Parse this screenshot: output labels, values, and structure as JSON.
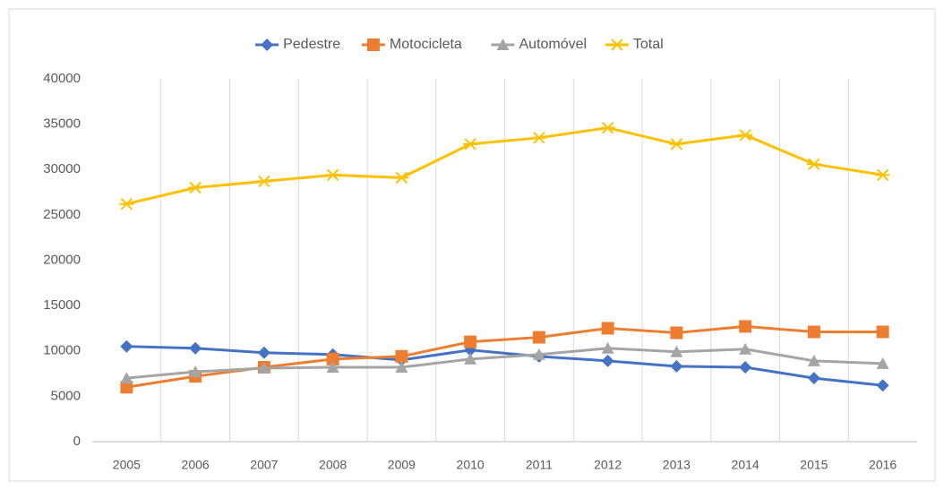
{
  "chart_data": {
    "type": "line",
    "categories": [
      "2005",
      "2006",
      "2007",
      "2008",
      "2009",
      "2010",
      "2011",
      "2012",
      "2013",
      "2014",
      "2015",
      "2016"
    ],
    "series": [
      {
        "name": "Pedestre",
        "color": "#4472c4",
        "marker": "diamond",
        "values": [
          10500,
          10300,
          9800,
          9600,
          9000,
          10100,
          9400,
          8900,
          8300,
          8200,
          7000,
          6200
        ]
      },
      {
        "name": "Motocicleta",
        "color": "#ed7d31",
        "marker": "square",
        "values": [
          6000,
          7200,
          8200,
          9100,
          9400,
          11000,
          11500,
          12500,
          12000,
          12700,
          12100,
          12100
        ]
      },
      {
        "name": "Automóvel",
        "color": "#a5a5a5",
        "marker": "triangle",
        "values": [
          7000,
          7700,
          8100,
          8200,
          8200,
          9100,
          9600,
          10300,
          9900,
          10200,
          8900,
          8600
        ]
      },
      {
        "name": "Total",
        "color": "#ffc000",
        "marker": "star",
        "values": [
          26200,
          28000,
          28700,
          29400,
          29100,
          32800,
          33500,
          34600,
          32800,
          33800,
          30600,
          29400
        ]
      }
    ],
    "ylim": [
      0,
      40000
    ],
    "yticks": [
      0,
      5000,
      10000,
      15000,
      20000,
      25000,
      30000,
      35000,
      40000
    ],
    "grid": "vertical",
    "legend": "top"
  }
}
